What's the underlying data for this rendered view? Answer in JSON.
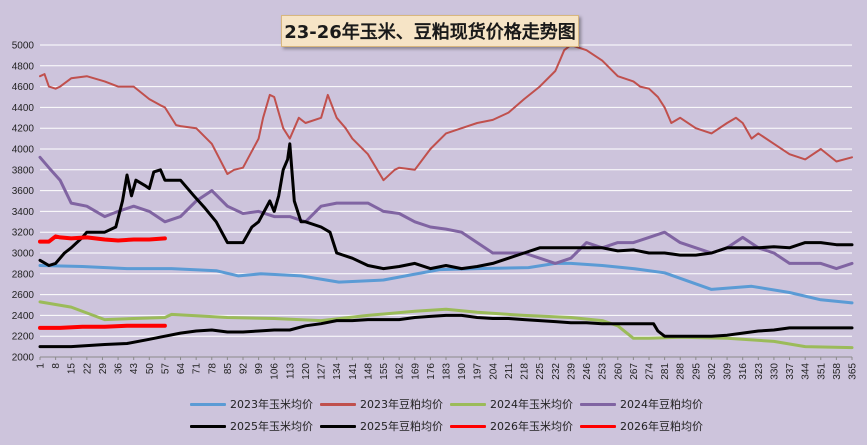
{
  "title": "23-26年玉米、豆粕现货价格走势图",
  "chart_data": {
    "type": "line",
    "title": "23-26年玉米、豆粕现货价格走势图",
    "xlabel": "",
    "ylabel": "",
    "ylim": [
      2000,
      5000
    ],
    "yticks": [
      2000,
      2200,
      2400,
      2600,
      2800,
      3000,
      3200,
      3400,
      3600,
      3800,
      4000,
      4200,
      4400,
      4600,
      4800,
      5000
    ],
    "xlim": [
      1,
      365
    ],
    "xtick_labels": [
      "1",
      "8",
      "15",
      "22",
      "29",
      "36",
      "43",
      "50",
      "57",
      "64",
      "71",
      "78",
      "85",
      "92",
      "99",
      "106",
      "113",
      "120",
      "127",
      "134",
      "141",
      "148",
      "155",
      "162",
      "169",
      "176",
      "183",
      "190",
      "197",
      "204",
      "211",
      "218",
      "225",
      "232",
      "239",
      "246",
      "253",
      "260",
      "267",
      "274",
      "281",
      "288",
      "295",
      "302",
      "309",
      "316",
      "323",
      "330",
      "337",
      "344",
      "351",
      "358",
      "365"
    ],
    "grid": true,
    "legend_position": "bottom",
    "series": [
      {
        "name": "2023年玉米均价",
        "color": "#5b9bd5",
        "width": 3,
        "x": [
          1,
          20,
          40,
          57,
          60,
          80,
          90,
          100,
          118,
          135,
          155,
          180,
          197,
          220,
          232,
          239,
          253,
          267,
          281,
          302,
          320,
          337,
          351,
          365
        ],
        "y": [
          2880,
          2870,
          2850,
          2850,
          2850,
          2830,
          2780,
          2800,
          2780,
          2720,
          2740,
          2840,
          2850,
          2860,
          2900,
          2900,
          2880,
          2850,
          2810,
          2650,
          2680,
          2620,
          2550,
          2520
        ]
      },
      {
        "name": "2023年豆粕均价",
        "color": "#c0504d",
        "width": 2,
        "x": [
          1,
          3,
          5,
          8,
          10,
          15,
          22,
          30,
          36,
          43,
          50,
          55,
          57,
          62,
          64,
          71,
          78,
          85,
          88,
          92,
          99,
          101,
          104,
          106,
          110,
          113,
          117,
          120,
          127,
          130,
          134,
          138,
          141,
          148,
          155,
          160,
          162,
          169,
          176,
          183,
          190,
          197,
          204,
          211,
          218,
          225,
          232,
          234,
          236,
          239,
          246,
          253,
          260,
          267,
          270,
          274,
          278,
          281,
          284,
          288,
          295,
          302,
          309,
          313,
          316,
          320,
          323,
          330,
          337,
          344,
          351,
          358,
          365
        ],
        "y": [
          4700,
          4720,
          4600,
          4580,
          4600,
          4680,
          4700,
          4650,
          4600,
          4600,
          4480,
          4420,
          4400,
          4230,
          4220,
          4200,
          4050,
          3760,
          3800,
          3820,
          4100,
          4300,
          4520,
          4500,
          4200,
          4100,
          4300,
          4250,
          4300,
          4520,
          4300,
          4200,
          4100,
          3950,
          3700,
          3800,
          3820,
          3800,
          4000,
          4150,
          4200,
          4250,
          4280,
          4350,
          4480,
          4600,
          4750,
          4850,
          4950,
          5000,
          4950,
          4850,
          4700,
          4650,
          4600,
          4580,
          4500,
          4400,
          4250,
          4300,
          4200,
          4150,
          4250,
          4300,
          4250,
          4100,
          4150,
          4050,
          3950,
          3900,
          4000,
          3880,
          3920
        ]
      },
      {
        "name": "2024年玉米均价",
        "color": "#9bbb59",
        "width": 3,
        "x": [
          1,
          15,
          30,
          43,
          57,
          60,
          85,
          106,
          127,
          148,
          169,
          183,
          197,
          218,
          239,
          253,
          260,
          267,
          274,
          288,
          309,
          330,
          344,
          365
        ],
        "y": [
          2530,
          2480,
          2360,
          2370,
          2380,
          2410,
          2380,
          2370,
          2350,
          2400,
          2440,
          2460,
          2430,
          2400,
          2380,
          2350,
          2300,
          2180,
          2180,
          2190,
          2180,
          2150,
          2100,
          2090
        ]
      },
      {
        "name": "2024年豆粕均价",
        "color": "#8064a2",
        "width": 3,
        "x": [
          1,
          5,
          10,
          15,
          22,
          30,
          36,
          43,
          50,
          57,
          64,
          71,
          78,
          85,
          92,
          99,
          106,
          113,
          120,
          127,
          134,
          141,
          148,
          155,
          162,
          169,
          176,
          183,
          190,
          197,
          204,
          211,
          218,
          225,
          232,
          239,
          246,
          253,
          260,
          267,
          274,
          281,
          288,
          295,
          302,
          309,
          316,
          323,
          330,
          337,
          344,
          351,
          358,
          365
        ],
        "y": [
          3920,
          3820,
          3700,
          3480,
          3450,
          3350,
          3400,
          3450,
          3400,
          3300,
          3350,
          3500,
          3600,
          3450,
          3380,
          3400,
          3350,
          3350,
          3300,
          3450,
          3480,
          3480,
          3480,
          3400,
          3380,
          3300,
          3250,
          3230,
          3200,
          3100,
          3000,
          3000,
          3000,
          2950,
          2900,
          2950,
          3100,
          3050,
          3100,
          3100,
          3150,
          3200,
          3100,
          3050,
          3000,
          3050,
          3150,
          3050,
          3000,
          2900,
          2900,
          2900,
          2850,
          2900
        ]
      },
      {
        "name": "2025年玉米均价",
        "color": "#000000",
        "width": 3,
        "x": [
          1,
          15,
          30,
          40,
          50,
          57,
          64,
          71,
          78,
          85,
          92,
          99,
          106,
          113,
          120,
          127,
          134,
          141,
          148,
          155,
          162,
          169,
          176,
          183,
          190,
          197,
          204,
          211,
          218,
          225,
          232,
          239,
          246,
          253,
          260,
          267,
          274,
          276,
          278,
          281,
          288,
          295,
          302,
          309,
          316,
          323,
          330,
          337,
          344,
          351,
          358,
          365
        ],
        "y": [
          2100,
          2100,
          2120,
          2130,
          2170,
          2200,
          2230,
          2250,
          2260,
          2240,
          2240,
          2250,
          2260,
          2260,
          2300,
          2320,
          2350,
          2350,
          2360,
          2360,
          2360,
          2380,
          2390,
          2400,
          2400,
          2380,
          2370,
          2370,
          2360,
          2350,
          2340,
          2330,
          2330,
          2320,
          2320,
          2320,
          2320,
          2320,
          2250,
          2200,
          2200,
          2200,
          2200,
          2210,
          2230,
          2250,
          2260,
          2280,
          2280,
          2280,
          2280,
          2280
        ]
      },
      {
        "name": "2025年豆粕均价",
        "color": "#000000",
        "width": 3,
        "x": [
          1,
          5,
          8,
          12,
          15,
          20,
          22,
          30,
          35,
          38,
          40,
          42,
          44,
          48,
          50,
          52,
          55,
          57,
          64,
          70,
          75,
          80,
          85,
          92,
          96,
          99,
          104,
          106,
          108,
          110,
          112,
          113,
          115,
          118,
          120,
          127,
          131,
          134,
          141,
          148,
          155,
          162,
          169,
          176,
          183,
          190,
          197,
          204,
          211,
          218,
          225,
          232,
          239,
          246,
          253,
          260,
          267,
          274,
          281,
          288,
          295,
          302,
          309,
          316,
          323,
          330,
          337,
          344,
          351,
          358,
          365
        ],
        "y": [
          2930,
          2880,
          2900,
          3000,
          3050,
          3150,
          3200,
          3200,
          3250,
          3500,
          3750,
          3550,
          3700,
          3650,
          3620,
          3780,
          3800,
          3700,
          3700,
          3550,
          3430,
          3300,
          3100,
          3100,
          3250,
          3300,
          3500,
          3400,
          3550,
          3800,
          3900,
          4050,
          3500,
          3300,
          3300,
          3250,
          3200,
          3000,
          2950,
          2880,
          2850,
          2870,
          2900,
          2850,
          2880,
          2850,
          2870,
          2900,
          2950,
          3000,
          3050,
          3050,
          3050,
          3050,
          3050,
          3020,
          3030,
          3000,
          3000,
          2980,
          2980,
          3000,
          3050,
          3050,
          3050,
          3060,
          3050,
          3100,
          3100,
          3080,
          3080
        ]
      },
      {
        "name": "2026年玉米均价",
        "color": "#ff0000",
        "width": 4,
        "x": [
          1,
          10,
          20,
          30,
          40,
          50,
          57
        ],
        "y": [
          2280,
          2280,
          2290,
          2290,
          2300,
          2300,
          2300
        ]
      },
      {
        "name": "2026年豆粕均价",
        "color": "#ff0000",
        "width": 4,
        "x": [
          1,
          5,
          8,
          10,
          15,
          22,
          30,
          36,
          43,
          50,
          57
        ],
        "y": [
          3110,
          3110,
          3160,
          3150,
          3140,
          3150,
          3130,
          3120,
          3130,
          3130,
          3140
        ]
      }
    ]
  }
}
